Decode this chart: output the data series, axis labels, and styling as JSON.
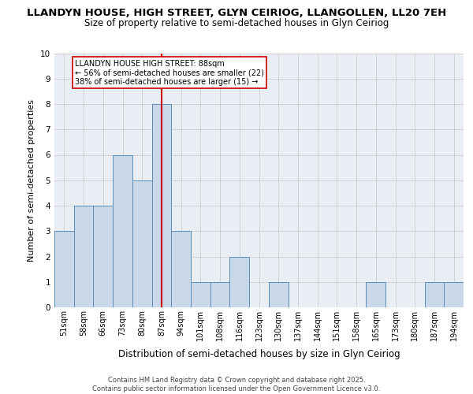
{
  "title_line1": "LLANDYN HOUSE, HIGH STREET, GLYN CEIRIOG, LLANGOLLEN, LL20 7EH",
  "title_line2": "Size of property relative to semi-detached houses in Glyn Ceiriog",
  "xlabel": "Distribution of semi-detached houses by size in Glyn Ceiriog",
  "ylabel": "Number of semi-detached properties",
  "categories": [
    "51sqm",
    "58sqm",
    "66sqm",
    "73sqm",
    "80sqm",
    "87sqm",
    "94sqm",
    "101sqm",
    "108sqm",
    "116sqm",
    "123sqm",
    "130sqm",
    "137sqm",
    "144sqm",
    "151sqm",
    "158sqm",
    "165sqm",
    "173sqm",
    "180sqm",
    "187sqm",
    "194sqm"
  ],
  "values": [
    3,
    4,
    4,
    6,
    5,
    8,
    3,
    1,
    1,
    2,
    0,
    1,
    0,
    0,
    0,
    0,
    1,
    0,
    0,
    1,
    1
  ],
  "bar_color": "#c8d8e8",
  "bar_edge_color": "#5b8db8",
  "highlight_index": 5,
  "highlight_line_color": "#cc0000",
  "annotation_text": "LLANDYN HOUSE HIGH STREET: 88sqm\n← 56% of semi-detached houses are smaller (22)\n38% of semi-detached houses are larger (15) →",
  "annotation_box_color": "#ffffff",
  "annotation_box_edge_color": "#cc0000",
  "ylim": [
    0,
    10
  ],
  "yticks": [
    0,
    1,
    2,
    3,
    4,
    5,
    6,
    7,
    8,
    9,
    10
  ],
  "grid_color": "#cccccc",
  "background_color": "#e8eef4",
  "footer_text": "Contains HM Land Registry data © Crown copyright and database right 2025.\nContains public sector information licensed under the Open Government Licence v3.0.",
  "title_fontsize": 9.5,
  "subtitle_fontsize": 8.5,
  "xlabel_fontsize": 8.5,
  "ylabel_fontsize": 8,
  "tick_fontsize": 7,
  "annotation_fontsize": 7,
  "footer_fontsize": 6
}
